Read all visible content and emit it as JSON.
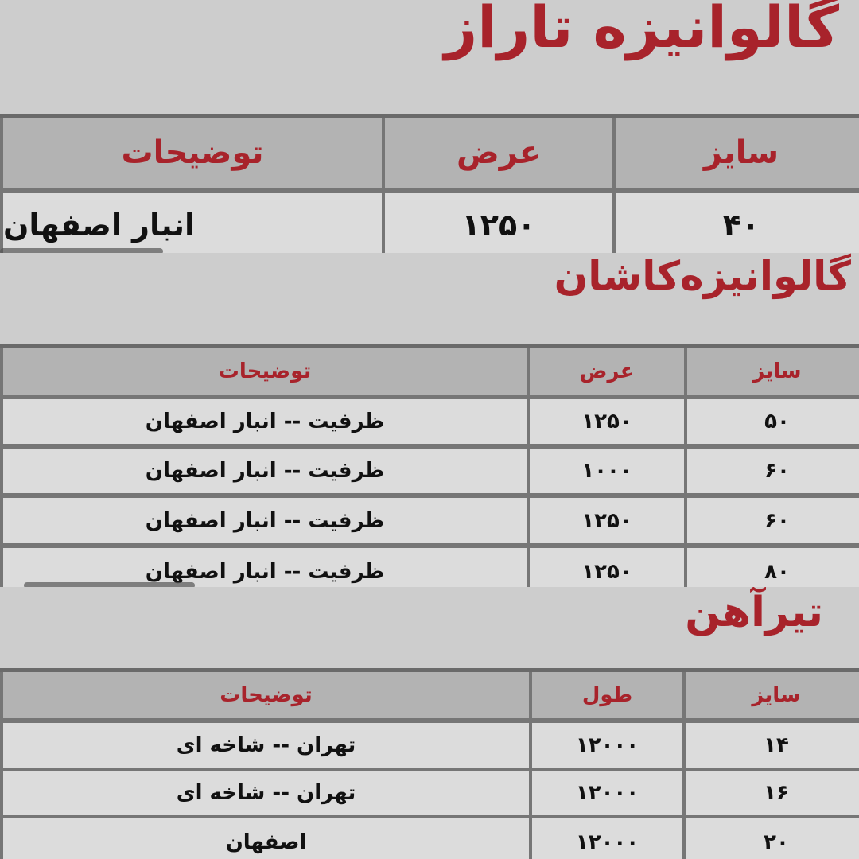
{
  "colors": {
    "title": "#a8232b",
    "header_bg": "#b3b3b3",
    "row_bg": "#dcdcdc",
    "border": "#767676"
  },
  "sections": [
    {
      "title": "گالوانیزه تاراز",
      "headers": [
        "سایز",
        "عرض",
        "توضیحات"
      ],
      "rows": [
        [
          "۴۰",
          "۱۲۵۰",
          "انبار اصفهان"
        ]
      ]
    },
    {
      "title": "گالوانیزه‌کاشان",
      "headers": [
        "سایز",
        "عرض",
        "توضیحات"
      ],
      "rows": [
        [
          "۵۰",
          "۱۲۵۰",
          "ظرفیت -- انبار اصفهان"
        ],
        [
          "۶۰",
          "۱۰۰۰",
          "ظرفیت -- انبار اصفهان"
        ],
        [
          "۶۰",
          "۱۲۵۰",
          "ظرفیت -- انبار اصفهان"
        ],
        [
          "۸۰",
          "۱۲۵۰",
          "ظرفیت -- انبار اصفهان"
        ]
      ]
    },
    {
      "title": "تیرآهن",
      "headers": [
        "سایز",
        "طول",
        "توضیحات"
      ],
      "rows": [
        [
          "۱۴",
          "۱۲۰۰۰",
          "تهران -- شاخه ای"
        ],
        [
          "۱۶",
          "۱۲۰۰۰",
          "تهران -- شاخه ای"
        ],
        [
          "۲۰",
          "۱۲۰۰۰",
          "اصفهان"
        ]
      ]
    }
  ]
}
